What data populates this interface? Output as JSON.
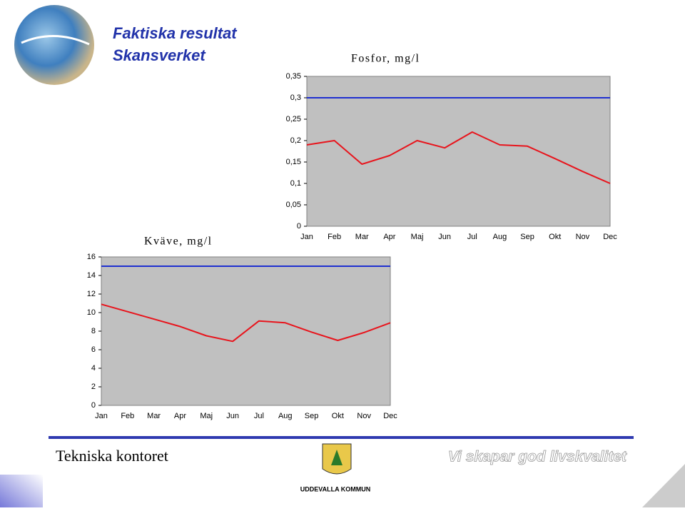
{
  "header": {
    "title": "Faktiska resultat",
    "subtitle": "Skansverket"
  },
  "chart_data": [
    {
      "type": "line",
      "title": "Fosfor, mg/l",
      "categories": [
        "Jan",
        "Feb",
        "Mar",
        "Apr",
        "Maj",
        "Jun",
        "Jul",
        "Aug",
        "Sep",
        "Okt",
        "Nov",
        "Dec"
      ],
      "series": [
        {
          "color": "#e8141c",
          "values": [
            0.19,
            0.2,
            0.145,
            0.165,
            0.2,
            0.183,
            0.22,
            0.19,
            0.187,
            0.158,
            0.128,
            0.1
          ]
        },
        {
          "color": "#1f2fd0",
          "values": [
            0.3,
            0.3,
            0.3,
            0.3,
            0.3,
            0.3,
            0.3,
            0.3,
            0.3,
            0.3,
            0.3,
            0.3
          ]
        }
      ],
      "ylim": [
        0,
        0.35
      ],
      "yticks": [
        0,
        {
          "value": 0.05,
          "label": "0,05"
        },
        {
          "value": 0.1,
          "label": "0,1"
        },
        {
          "value": 0.15,
          "label": "0,15"
        },
        {
          "value": 0.2,
          "label": "0,2"
        },
        {
          "value": 0.25,
          "label": "0,25"
        },
        {
          "value": 0.3,
          "label": "0,3"
        },
        {
          "value": 0.35,
          "label": "0,35"
        }
      ],
      "plot_color": "#c0c0c0"
    },
    {
      "type": "line",
      "title": "Kväve, mg/l",
      "categories": [
        "Jan",
        "Feb",
        "Mar",
        "Apr",
        "Maj",
        "Jun",
        "Jul",
        "Aug",
        "Sep",
        "Okt",
        "Nov",
        "Dec"
      ],
      "series": [
        {
          "color": "#e8141c",
          "values": [
            10.9,
            10.1,
            9.3,
            8.5,
            7.5,
            6.9,
            9.1,
            8.9,
            7.9,
            7.0,
            7.85,
            8.9
          ]
        },
        {
          "color": "#1f2fd0",
          "values": [
            15,
            15,
            15,
            15,
            15,
            15,
            15,
            15,
            15,
            15,
            15,
            15
          ]
        }
      ],
      "ylim": [
        0,
        16
      ],
      "yticks": [
        0,
        2,
        4,
        6,
        8,
        10,
        12,
        14,
        16
      ],
      "plot_color": "#c0c0c0"
    }
  ],
  "footer": {
    "left": "Tekniska kontoret",
    "center": "UDDEVALLA KOMMUN",
    "right": "Vi skapar god livskvalitet"
  }
}
